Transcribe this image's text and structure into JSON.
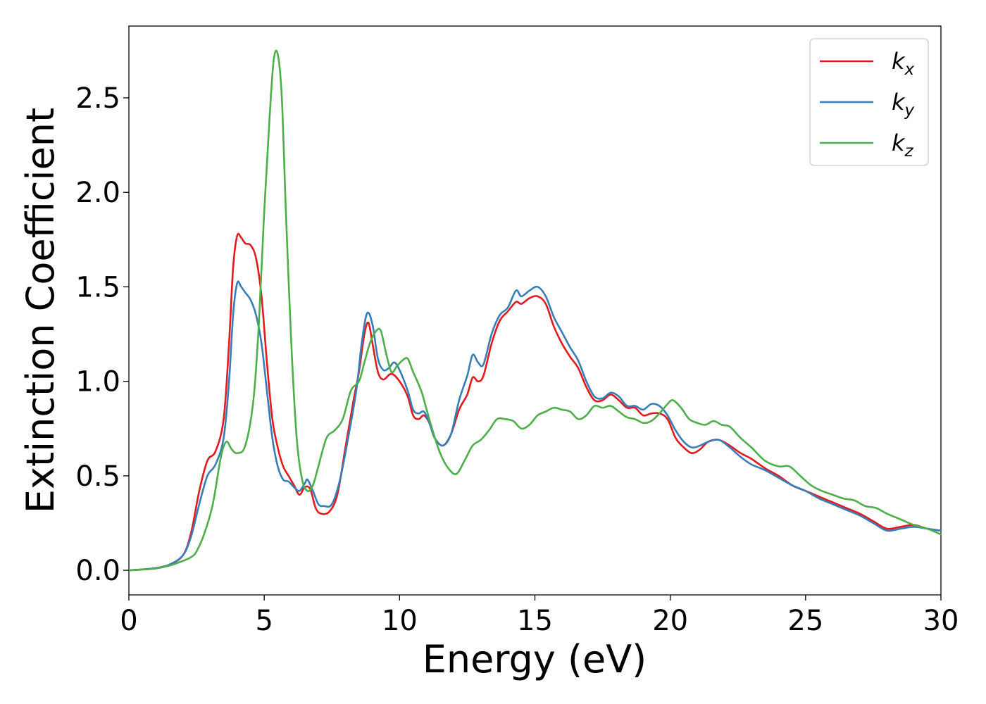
{
  "chart_data": {
    "type": "line",
    "title": "",
    "xlabel": "Energy (eV)",
    "ylabel": "Extinction Coefficient",
    "xlim": [
      0,
      30
    ],
    "ylim": [
      -0.13,
      2.88
    ],
    "xticks": [
      0,
      5,
      10,
      15,
      20,
      25,
      30
    ],
    "xtick_labels": [
      "0",
      "5",
      "10",
      "15",
      "20",
      "25",
      "30"
    ],
    "yticks": [
      0.0,
      0.5,
      1.0,
      1.5,
      2.0,
      2.5
    ],
    "ytick_labels": [
      "0.0",
      "0.5",
      "1.0",
      "1.5",
      "2.0",
      "2.5"
    ],
    "grid": false,
    "legend_position": "top-right",
    "series": [
      {
        "name": "k_x",
        "base": "k",
        "sub": "x",
        "color": "#e41a1c",
        "points": [
          [
            0,
            0
          ],
          [
            0.5,
            0.005
          ],
          [
            1,
            0.012
          ],
          [
            1.5,
            0.03
          ],
          [
            2,
            0.08
          ],
          [
            2.3,
            0.2
          ],
          [
            2.6,
            0.42
          ],
          [
            2.9,
            0.58
          ],
          [
            3.2,
            0.63
          ],
          [
            3.5,
            0.8
          ],
          [
            3.7,
            1.2
          ],
          [
            3.85,
            1.6
          ],
          [
            4.0,
            1.77
          ],
          [
            4.15,
            1.76
          ],
          [
            4.3,
            1.73
          ],
          [
            4.5,
            1.72
          ],
          [
            4.7,
            1.65
          ],
          [
            4.9,
            1.45
          ],
          [
            5.1,
            1.1
          ],
          [
            5.3,
            0.8
          ],
          [
            5.5,
            0.65
          ],
          [
            5.7,
            0.55
          ],
          [
            5.9,
            0.5
          ],
          [
            6.1,
            0.45
          ],
          [
            6.3,
            0.4
          ],
          [
            6.5,
            0.44
          ],
          [
            6.7,
            0.43
          ],
          [
            6.9,
            0.33
          ],
          [
            7.1,
            0.3
          ],
          [
            7.4,
            0.31
          ],
          [
            7.7,
            0.4
          ],
          [
            8.0,
            0.65
          ],
          [
            8.3,
            0.9
          ],
          [
            8.5,
            1.05
          ],
          [
            8.7,
            1.25
          ],
          [
            8.85,
            1.31
          ],
          [
            9.0,
            1.2
          ],
          [
            9.2,
            1.05
          ],
          [
            9.4,
            1.01
          ],
          [
            9.7,
            1.04
          ],
          [
            10.0,
            1.0
          ],
          [
            10.3,
            0.92
          ],
          [
            10.5,
            0.82
          ],
          [
            10.7,
            0.8
          ],
          [
            10.9,
            0.82
          ],
          [
            11.1,
            0.78
          ],
          [
            11.3,
            0.7
          ],
          [
            11.6,
            0.66
          ],
          [
            11.9,
            0.72
          ],
          [
            12.2,
            0.85
          ],
          [
            12.5,
            0.93
          ],
          [
            12.7,
            1.02
          ],
          [
            12.9,
            1.0
          ],
          [
            13.1,
            1.03
          ],
          [
            13.4,
            1.2
          ],
          [
            13.7,
            1.32
          ],
          [
            14.0,
            1.37
          ],
          [
            14.3,
            1.42
          ],
          [
            14.5,
            1.41
          ],
          [
            14.8,
            1.44
          ],
          [
            15.1,
            1.45
          ],
          [
            15.4,
            1.41
          ],
          [
            15.7,
            1.29
          ],
          [
            16.0,
            1.2
          ],
          [
            16.3,
            1.13
          ],
          [
            16.6,
            1.07
          ],
          [
            16.9,
            0.97
          ],
          [
            17.2,
            0.9
          ],
          [
            17.5,
            0.9
          ],
          [
            17.8,
            0.93
          ],
          [
            18.1,
            0.9
          ],
          [
            18.4,
            0.86
          ],
          [
            18.7,
            0.86
          ],
          [
            19.0,
            0.82
          ],
          [
            19.3,
            0.83
          ],
          [
            19.6,
            0.83
          ],
          [
            19.9,
            0.8
          ],
          [
            20.2,
            0.7
          ],
          [
            20.5,
            0.65
          ],
          [
            20.8,
            0.62
          ],
          [
            21.1,
            0.64
          ],
          [
            21.4,
            0.68
          ],
          [
            21.8,
            0.69
          ],
          [
            22.2,
            0.66
          ],
          [
            22.6,
            0.62
          ],
          [
            23.0,
            0.59
          ],
          [
            23.5,
            0.54
          ],
          [
            24.0,
            0.5
          ],
          [
            24.5,
            0.45
          ],
          [
            25.0,
            0.42
          ],
          [
            25.5,
            0.39
          ],
          [
            26.0,
            0.36
          ],
          [
            26.5,
            0.33
          ],
          [
            27.0,
            0.3
          ],
          [
            27.5,
            0.26
          ],
          [
            28.0,
            0.22
          ],
          [
            28.5,
            0.23
          ],
          [
            29.0,
            0.24
          ],
          [
            29.5,
            0.22
          ],
          [
            30,
            0.21
          ]
        ]
      },
      {
        "name": "k_y",
        "base": "k",
        "sub": "y",
        "color": "#377eb8",
        "points": [
          [
            0,
            0
          ],
          [
            0.5,
            0.005
          ],
          [
            1,
            0.012
          ],
          [
            1.5,
            0.03
          ],
          [
            2,
            0.08
          ],
          [
            2.3,
            0.18
          ],
          [
            2.6,
            0.35
          ],
          [
            2.9,
            0.5
          ],
          [
            3.2,
            0.56
          ],
          [
            3.5,
            0.7
          ],
          [
            3.7,
            1.0
          ],
          [
            3.85,
            1.35
          ],
          [
            4.0,
            1.52
          ],
          [
            4.15,
            1.5
          ],
          [
            4.3,
            1.47
          ],
          [
            4.5,
            1.43
          ],
          [
            4.7,
            1.35
          ],
          [
            4.9,
            1.2
          ],
          [
            5.1,
            0.95
          ],
          [
            5.3,
            0.7
          ],
          [
            5.5,
            0.55
          ],
          [
            5.7,
            0.48
          ],
          [
            5.9,
            0.47
          ],
          [
            6.1,
            0.44
          ],
          [
            6.3,
            0.42
          ],
          [
            6.5,
            0.46
          ],
          [
            6.6,
            0.48
          ],
          [
            6.8,
            0.42
          ],
          [
            7.0,
            0.35
          ],
          [
            7.2,
            0.34
          ],
          [
            7.5,
            0.35
          ],
          [
            7.8,
            0.48
          ],
          [
            8.1,
            0.7
          ],
          [
            8.4,
            0.95
          ],
          [
            8.6,
            1.2
          ],
          [
            8.8,
            1.36
          ],
          [
            9.0,
            1.3
          ],
          [
            9.2,
            1.12
          ],
          [
            9.4,
            1.06
          ],
          [
            9.6,
            1.07
          ],
          [
            9.8,
            1.1
          ],
          [
            10.0,
            1.06
          ],
          [
            10.3,
            0.95
          ],
          [
            10.5,
            0.85
          ],
          [
            10.7,
            0.83
          ],
          [
            10.9,
            0.84
          ],
          [
            11.1,
            0.78
          ],
          [
            11.3,
            0.7
          ],
          [
            11.6,
            0.66
          ],
          [
            11.9,
            0.72
          ],
          [
            12.2,
            0.9
          ],
          [
            12.5,
            1.03
          ],
          [
            12.7,
            1.14
          ],
          [
            12.9,
            1.1
          ],
          [
            13.1,
            1.09
          ],
          [
            13.4,
            1.25
          ],
          [
            13.7,
            1.35
          ],
          [
            14.0,
            1.39
          ],
          [
            14.3,
            1.48
          ],
          [
            14.5,
            1.45
          ],
          [
            14.8,
            1.48
          ],
          [
            15.1,
            1.5
          ],
          [
            15.4,
            1.45
          ],
          [
            15.7,
            1.34
          ],
          [
            16.0,
            1.26
          ],
          [
            16.3,
            1.18
          ],
          [
            16.6,
            1.11
          ],
          [
            16.9,
            1.0
          ],
          [
            17.2,
            0.92
          ],
          [
            17.5,
            0.91
          ],
          [
            17.8,
            0.94
          ],
          [
            18.1,
            0.92
          ],
          [
            18.4,
            0.87
          ],
          [
            18.7,
            0.87
          ],
          [
            19.0,
            0.85
          ],
          [
            19.3,
            0.88
          ],
          [
            19.6,
            0.87
          ],
          [
            19.9,
            0.82
          ],
          [
            20.2,
            0.74
          ],
          [
            20.5,
            0.68
          ],
          [
            20.8,
            0.65
          ],
          [
            21.1,
            0.66
          ],
          [
            21.4,
            0.68
          ],
          [
            21.8,
            0.69
          ],
          [
            22.2,
            0.65
          ],
          [
            22.6,
            0.6
          ],
          [
            23.0,
            0.56
          ],
          [
            23.5,
            0.53
          ],
          [
            24.0,
            0.49
          ],
          [
            24.5,
            0.45
          ],
          [
            25.0,
            0.42
          ],
          [
            25.5,
            0.38
          ],
          [
            26.0,
            0.35
          ],
          [
            26.5,
            0.32
          ],
          [
            27.0,
            0.29
          ],
          [
            27.5,
            0.25
          ],
          [
            28.0,
            0.21
          ],
          [
            28.5,
            0.22
          ],
          [
            29.0,
            0.23
          ],
          [
            29.5,
            0.22
          ],
          [
            30,
            0.21
          ]
        ]
      },
      {
        "name": "k_z",
        "base": "k",
        "sub": "z",
        "color": "#4daf4a",
        "points": [
          [
            0,
            0
          ],
          [
            0.5,
            0.004
          ],
          [
            1,
            0.01
          ],
          [
            1.5,
            0.025
          ],
          [
            2,
            0.05
          ],
          [
            2.3,
            0.07
          ],
          [
            2.5,
            0.1
          ],
          [
            2.8,
            0.2
          ],
          [
            3.1,
            0.35
          ],
          [
            3.4,
            0.6
          ],
          [
            3.6,
            0.68
          ],
          [
            3.8,
            0.64
          ],
          [
            4.0,
            0.62
          ],
          [
            4.3,
            0.66
          ],
          [
            4.6,
            0.9
          ],
          [
            4.8,
            1.3
          ],
          [
            5.0,
            1.9
          ],
          [
            5.2,
            2.4
          ],
          [
            5.35,
            2.7
          ],
          [
            5.5,
            2.73
          ],
          [
            5.65,
            2.5
          ],
          [
            5.8,
            1.9
          ],
          [
            6.0,
            1.2
          ],
          [
            6.2,
            0.7
          ],
          [
            6.4,
            0.48
          ],
          [
            6.6,
            0.42
          ],
          [
            6.8,
            0.45
          ],
          [
            7.0,
            0.55
          ],
          [
            7.3,
            0.7
          ],
          [
            7.6,
            0.74
          ],
          [
            7.9,
            0.8
          ],
          [
            8.2,
            0.95
          ],
          [
            8.5,
            1.0
          ],
          [
            8.7,
            1.1
          ],
          [
            8.9,
            1.2
          ],
          [
            9.1,
            1.26
          ],
          [
            9.3,
            1.27
          ],
          [
            9.5,
            1.15
          ],
          [
            9.7,
            1.05
          ],
          [
            9.9,
            1.08
          ],
          [
            10.1,
            1.11
          ],
          [
            10.3,
            1.12
          ],
          [
            10.5,
            1.05
          ],
          [
            10.8,
            0.95
          ],
          [
            11.0,
            0.85
          ],
          [
            11.2,
            0.75
          ],
          [
            11.5,
            0.62
          ],
          [
            11.8,
            0.54
          ],
          [
            12.1,
            0.51
          ],
          [
            12.4,
            0.58
          ],
          [
            12.7,
            0.66
          ],
          [
            13.0,
            0.69
          ],
          [
            13.3,
            0.74
          ],
          [
            13.6,
            0.8
          ],
          [
            13.9,
            0.8
          ],
          [
            14.2,
            0.79
          ],
          [
            14.5,
            0.75
          ],
          [
            14.8,
            0.77
          ],
          [
            15.1,
            0.82
          ],
          [
            15.4,
            0.84
          ],
          [
            15.7,
            0.86
          ],
          [
            16.0,
            0.85
          ],
          [
            16.3,
            0.84
          ],
          [
            16.6,
            0.8
          ],
          [
            16.9,
            0.82
          ],
          [
            17.2,
            0.87
          ],
          [
            17.5,
            0.86
          ],
          [
            17.8,
            0.87
          ],
          [
            18.1,
            0.84
          ],
          [
            18.4,
            0.81
          ],
          [
            18.7,
            0.8
          ],
          [
            19.0,
            0.78
          ],
          [
            19.3,
            0.79
          ],
          [
            19.6,
            0.83
          ],
          [
            19.9,
            0.88
          ],
          [
            20.1,
            0.9
          ],
          [
            20.4,
            0.86
          ],
          [
            20.7,
            0.8
          ],
          [
            21.0,
            0.78
          ],
          [
            21.3,
            0.77
          ],
          [
            21.6,
            0.79
          ],
          [
            21.9,
            0.77
          ],
          [
            22.2,
            0.76
          ],
          [
            22.6,
            0.7
          ],
          [
            23.0,
            0.65
          ],
          [
            23.5,
            0.58
          ],
          [
            24.0,
            0.55
          ],
          [
            24.4,
            0.55
          ],
          [
            24.8,
            0.5
          ],
          [
            25.2,
            0.45
          ],
          [
            25.6,
            0.42
          ],
          [
            26.0,
            0.4
          ],
          [
            26.4,
            0.38
          ],
          [
            26.8,
            0.37
          ],
          [
            27.2,
            0.34
          ],
          [
            27.6,
            0.33
          ],
          [
            28.0,
            0.3
          ],
          [
            28.5,
            0.27
          ],
          [
            29.0,
            0.24
          ],
          [
            29.5,
            0.22
          ],
          [
            30,
            0.19
          ]
        ]
      }
    ]
  }
}
